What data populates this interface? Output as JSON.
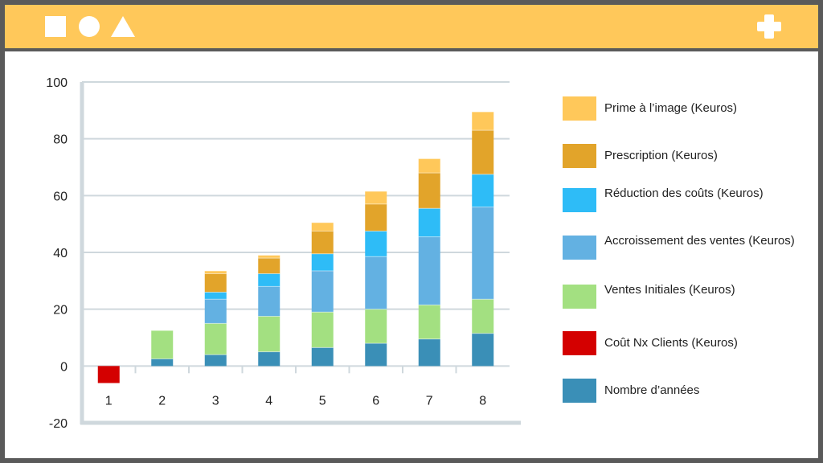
{
  "chart_data": {
    "type": "bar",
    "stacked": true,
    "categories": [
      "1",
      "2",
      "3",
      "4",
      "5",
      "6",
      "7",
      "8"
    ],
    "ylim": [
      -20,
      100
    ],
    "yticks": [
      -20,
      0,
      20,
      40,
      60,
      80,
      100
    ],
    "grid": true,
    "legend_position": "right",
    "series": [
      {
        "name": "Nombre d’années",
        "color": "#3a8fb7",
        "values": [
          0,
          2.5,
          4,
          5,
          6.5,
          8,
          9.5,
          11.5
        ]
      },
      {
        "name": "Coût Nx Clients (Keuros)",
        "color": "#d40000",
        "values": [
          -6,
          0,
          0,
          0,
          0,
          0,
          0,
          0
        ]
      },
      {
        "name": "Ventes Initiales (Keuros)",
        "color": "#a3e081",
        "values": [
          0,
          10,
          11,
          12.5,
          12.5,
          12,
          12,
          12
        ]
      },
      {
        "name": "Accroissement des ventes (Keuros)",
        "color": "#63b1e2",
        "values": [
          0,
          0,
          8.5,
          10.5,
          14.5,
          18.5,
          24,
          32.5
        ]
      },
      {
        "name": "Réduction des coûts (Keuros)",
        "color": "#2ebcf7",
        "values": [
          0,
          0,
          2.5,
          4.5,
          6,
          9,
          10,
          11.5
        ]
      },
      {
        "name": "Prescription (Keuros)",
        "color": "#e2a42a",
        "values": [
          0,
          0,
          6.5,
          5.5,
          8,
          9.5,
          12.5,
          15.5
        ]
      },
      {
        "name": "Prime à l’image (Keuros)",
        "color": "#ffc85a",
        "values": [
          0,
          0,
          1,
          1,
          3,
          4.5,
          5,
          6.5
        ]
      }
    ],
    "legend_order": [
      6,
      5,
      4,
      3,
      2,
      1,
      0
    ]
  }
}
